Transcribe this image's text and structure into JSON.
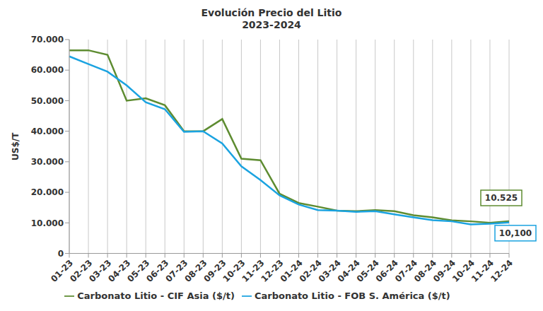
{
  "chart_data": {
    "type": "line",
    "title": "Evolución Precio del Litio",
    "subtitle": "2023-2024",
    "y_label": "US$/T",
    "categories": [
      "01-23",
      "02-23",
      "03-23",
      "04-23",
      "05-23",
      "06-23",
      "07-23",
      "08-23",
      "09-23",
      "10-23",
      "11-23",
      "12-23",
      "01-24",
      "02-24",
      "03-24",
      "04-24",
      "05-24",
      "06-24",
      "07-24",
      "08-24",
      "09-24",
      "10-24",
      "11-24",
      "12-24"
    ],
    "series": [
      {
        "name": "Carbonato Litio - CIF Asia ($/t)",
        "color": "#5e8c31",
        "values": [
          66500,
          66500,
          65000,
          50000,
          50800,
          48500,
          40000,
          40000,
          44000,
          31000,
          30500,
          19500,
          16500,
          15300,
          14000,
          13800,
          14200,
          13800,
          12500,
          11800,
          10800,
          10500,
          10000,
          10525
        ]
      },
      {
        "name": "Carbonato Litio - FOB S. América ($/t)",
        "color": "#1ba3e0",
        "values": [
          64500,
          62000,
          59500,
          55000,
          49500,
          47200,
          39800,
          40000,
          36000,
          28500,
          24000,
          19000,
          16000,
          14200,
          14000,
          13600,
          13800,
          12800,
          11800,
          10900,
          10500,
          9500,
          9700,
          10100
        ]
      }
    ],
    "ylim": [
      0,
      70000
    ],
    "yticks": [
      {
        "value": 0,
        "label": "0"
      },
      {
        "value": 10000,
        "label": "10.000"
      },
      {
        "value": 20000,
        "label": "20.000"
      },
      {
        "value": 30000,
        "label": "30.000"
      },
      {
        "value": 40000,
        "label": "40.000"
      },
      {
        "value": 50000,
        "label": "50.000"
      },
      {
        "value": 60000,
        "label": "60.000"
      },
      {
        "value": 70000,
        "label": "70.000"
      }
    ],
    "grid": "x",
    "legend": "bottom",
    "annotations": [
      {
        "category": "12-24",
        "value": 10525,
        "label": "10.525",
        "color": "#5e8c31"
      },
      {
        "category": "12-24",
        "value": 10100,
        "label": "10,100",
        "color": "#1ba3e0"
      }
    ]
  }
}
